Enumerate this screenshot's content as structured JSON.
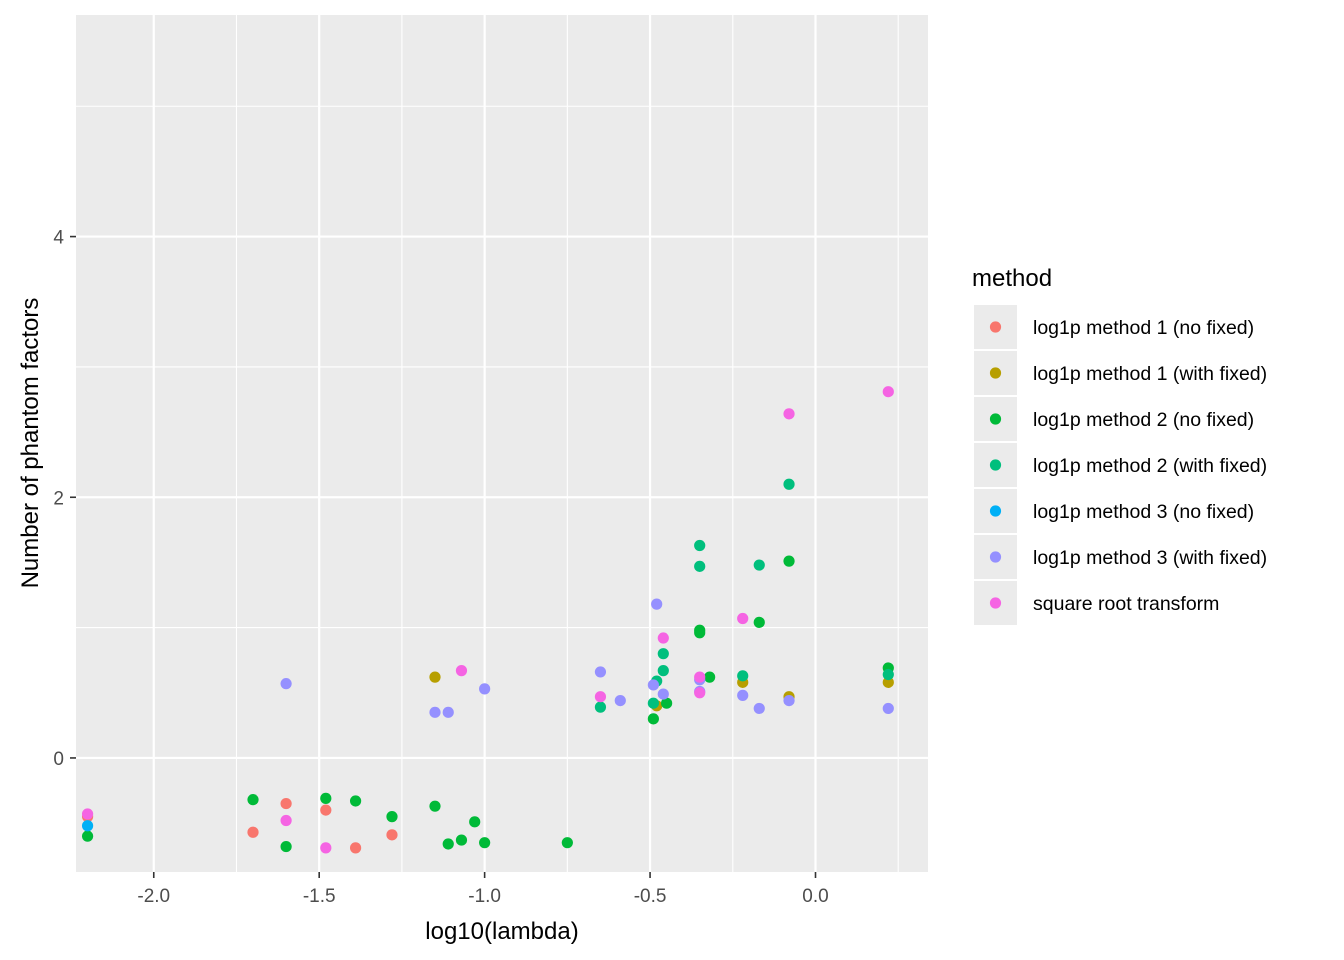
{
  "chart_data": {
    "type": "scatter",
    "xlabel": "log10(lambda)",
    "ylabel": "Number of phantom factors",
    "xlim": [
      -2.235,
      0.34
    ],
    "ylim": [
      -0.875,
      5.7
    ],
    "x_ticks": [
      -2.0,
      -1.5,
      -1.0,
      -0.5,
      0.0
    ],
    "x_tick_labels": [
      "-2.0",
      "-1.5",
      "-1.0",
      "-0.5",
      "0.0"
    ],
    "y_ticks": [
      0,
      2,
      4
    ],
    "y_tick_labels": [
      "0",
      "2",
      "4"
    ],
    "grid": true,
    "legend": {
      "title": "method",
      "position": "right"
    },
    "series": [
      {
        "name": "log1p method 1 (no fixed)",
        "color": "#F8766D",
        "x": [
          -2.2,
          -1.7,
          -1.6,
          -1.48,
          -1.39,
          -1.28
        ],
        "y": [
          -0.45,
          -0.57,
          -0.35,
          -0.4,
          -0.69,
          -0.59
        ]
      },
      {
        "name": "log1p method 1 (with fixed)",
        "color": "#B79F00",
        "x": [
          -1.15,
          -0.48,
          -0.22,
          -0.08,
          0.22
        ],
        "y": [
          0.62,
          0.4,
          0.58,
          0.47,
          0.58
        ]
      },
      {
        "name": "log1p method 2 (no fixed)",
        "color": "#00BA38",
        "x": [
          -2.2,
          -1.7,
          -1.6,
          -1.48,
          -1.39,
          -1.28,
          -1.15,
          -1.11,
          -1.07,
          -1.03,
          -1.0,
          -0.75,
          -0.49,
          -0.45,
          -0.35,
          -0.35,
          -0.32,
          -0.17,
          -0.08,
          0.22
        ],
        "y": [
          -0.6,
          -0.32,
          -0.68,
          -0.31,
          -0.33,
          -0.45,
          -0.37,
          -0.66,
          -0.63,
          -0.49,
          -0.65,
          -0.65,
          0.3,
          0.42,
          0.98,
          0.96,
          0.62,
          1.04,
          1.51,
          0.69
        ]
      },
      {
        "name": "log1p method 2 (with fixed)",
        "color": "#00BF7D",
        "x": [
          -0.65,
          -0.49,
          -0.48,
          -0.46,
          -0.46,
          -0.35,
          -0.35,
          -0.22,
          -0.17,
          -0.08,
          0.22
        ],
        "y": [
          0.39,
          0.42,
          0.59,
          0.67,
          0.8,
          1.63,
          1.47,
          0.63,
          1.48,
          2.1,
          0.64
        ]
      },
      {
        "name": "log1p method 3 (no fixed)",
        "color": "#00B0F6",
        "x": [
          -2.2
        ],
        "y": [
          -0.52
        ]
      },
      {
        "name": "log1p method 3 (with fixed)",
        "color": "#9590FF",
        "x": [
          -1.6,
          -1.15,
          -1.11,
          -1.0,
          -0.65,
          -0.59,
          -0.49,
          -0.48,
          -0.46,
          -0.35,
          -0.35,
          -0.22,
          -0.17,
          -0.08,
          0.22
        ],
        "y": [
          0.57,
          0.35,
          0.35,
          0.53,
          0.66,
          0.44,
          0.56,
          1.18,
          0.49,
          0.6,
          0.51,
          0.48,
          0.38,
          0.44,
          0.38
        ]
      },
      {
        "name": "square root transform",
        "color": "#F564E3",
        "x": [
          -2.2,
          -1.6,
          -1.48,
          -1.07,
          -0.65,
          -0.46,
          -0.35,
          -0.35,
          -0.22,
          -0.08,
          0.22
        ],
        "y": [
          -0.43,
          -0.48,
          -0.69,
          0.67,
          0.47,
          0.92,
          0.62,
          0.5,
          1.07,
          2.64,
          2.81
        ]
      }
    ]
  }
}
